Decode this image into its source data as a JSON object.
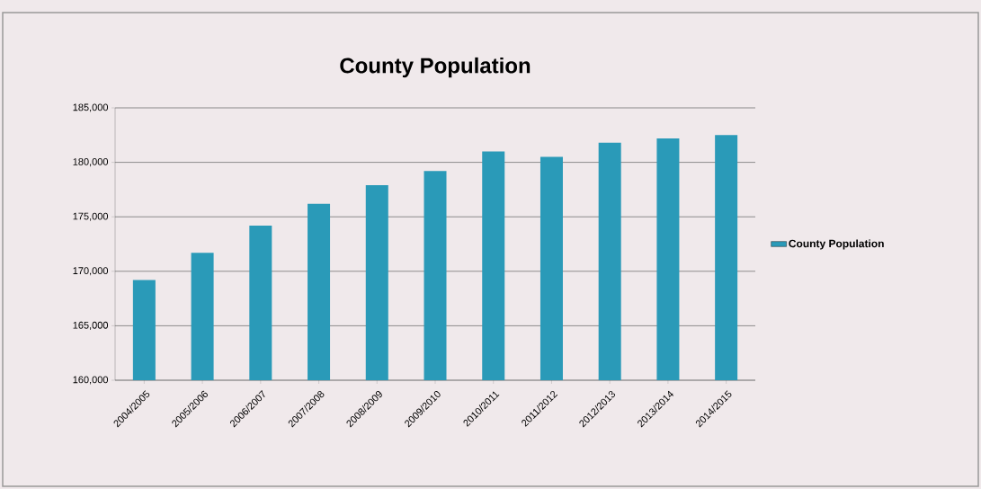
{
  "chart_data": {
    "type": "bar",
    "title": "County Population",
    "categories": [
      "2004/2005",
      "2005/2006",
      "2006/2007",
      "2007/2008",
      "2008/2009",
      "2009/2010",
      "2010/2011",
      "2011/2012",
      "2012/2013",
      "2013/2014",
      "2014/2015"
    ],
    "series": [
      {
        "name": "County Population",
        "color": "#2a9ab8",
        "values": [
          169200,
          171700,
          174200,
          176200,
          177900,
          179200,
          181000,
          180500,
          181800,
          182200,
          182500
        ]
      }
    ],
    "ylim": [
      160000,
      185000
    ],
    "yticks": [
      {
        "value": 160000,
        "label": "160,000"
      },
      {
        "value": 165000,
        "label": "165,000"
      },
      {
        "value": 170000,
        "label": "170,000"
      },
      {
        "value": 175000,
        "label": "175,000"
      },
      {
        "value": 180000,
        "label": "180,000"
      },
      {
        "value": 185000,
        "label": "185,000"
      }
    ],
    "grid": "y",
    "legend": "right"
  }
}
